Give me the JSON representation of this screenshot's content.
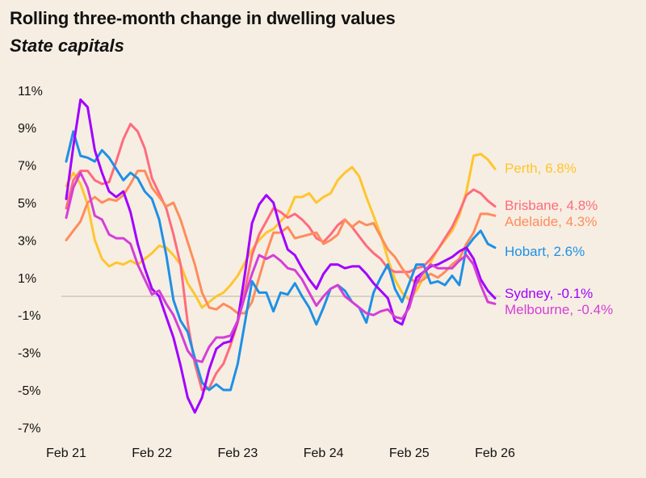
{
  "chart_data": {
    "type": "line",
    "title": "Rolling three-month change in dwelling values",
    "subtitle": "State capitals",
    "xlabel": "",
    "ylabel": "",
    "x_start": "2021-02",
    "x_end": "2026-02",
    "x_frequency": "monthly",
    "x_ticks": [
      "Feb 21",
      "Feb 22",
      "Feb 23",
      "Feb 24",
      "Feb 25",
      "Feb 26"
    ],
    "y_ticks": [
      "11%",
      "9%",
      "7%",
      "5%",
      "3%",
      "1%",
      "-1%",
      "-3%",
      "-5%",
      "-7%"
    ],
    "y_tick_values": [
      11,
      9,
      7,
      5,
      3,
      1,
      -1,
      -3,
      -5,
      -7
    ],
    "ylim": [
      -7.5,
      11.5
    ],
    "grid": false,
    "zero_line": true,
    "legend": "end-of-line labels, right",
    "series": [
      {
        "name": "Perth",
        "label": "Perth, 6.8%",
        "color": "#ffc52e",
        "values": [
          5.9,
          6.6,
          6.0,
          4.9,
          3.0,
          2.0,
          1.6,
          1.8,
          1.7,
          1.9,
          1.7,
          2.0,
          2.3,
          2.7,
          2.6,
          2.2,
          1.7,
          0.7,
          0.1,
          -0.6,
          -0.3,
          0,
          0.2,
          0.6,
          1.1,
          1.8,
          2.5,
          3.0,
          3.4,
          3.6,
          4.0,
          4.4,
          5.3,
          5.3,
          5.5,
          5.0,
          5.3,
          5.5,
          6.2,
          6.6,
          6.9,
          6.4,
          5.3,
          4.3,
          3.3,
          2.0,
          0.9,
          0.2,
          -0.2,
          0.3,
          1.0,
          1.8,
          2.5,
          3.0,
          3.5,
          4.3,
          5.6,
          7.5,
          7.6,
          7.3,
          6.8
        ]
      },
      {
        "name": "Brisbane",
        "label": "Brisbane, 4.8%",
        "color": "#ff6b7d",
        "values": [
          4.7,
          6.2,
          6.7,
          6.7,
          6.2,
          6.0,
          6.1,
          7.2,
          8.4,
          9.2,
          8.8,
          7.9,
          6.3,
          5.5,
          4.7,
          3.3,
          1.7,
          -1.4,
          -3.6,
          -5.0,
          -4.9,
          -4.1,
          -3.6,
          -2.6,
          -1.4,
          0.3,
          2.2,
          3.3,
          4.0,
          4.7,
          4.5,
          4.2,
          4.4,
          4.1,
          3.7,
          3.1,
          2.9,
          3.3,
          3.8,
          4.1,
          3.7,
          3.2,
          2.7,
          2.3,
          2.0,
          1.5,
          1.3,
          1.3,
          1.3,
          1.5,
          1.6,
          2.0,
          2.5,
          3.1,
          3.7,
          4.5,
          5.4,
          5.7,
          5.5,
          5.1,
          4.8
        ]
      },
      {
        "name": "Adelaide",
        "label": "Adelaide, 4.3%",
        "color": "#ff8c5c",
        "values": [
          3.0,
          3.5,
          4.0,
          5.0,
          5.3,
          5.0,
          5.2,
          5.1,
          5.4,
          6.0,
          6.7,
          6.7,
          5.8,
          5.3,
          4.8,
          5.0,
          4.1,
          2.9,
          1.7,
          0.2,
          -0.6,
          -0.7,
          -0.4,
          -0.6,
          -0.9,
          -0.9,
          -0.3,
          1.0,
          2.3,
          3.4,
          3.4,
          3.7,
          3.1,
          3.2,
          3.3,
          3.4,
          2.8,
          3.0,
          3.3,
          4.1,
          3.7,
          4.0,
          3.8,
          3.9,
          3.2,
          2.5,
          2.1,
          1.5,
          1.0,
          0.7,
          0.9,
          1.2,
          1.0,
          1.3,
          1.7,
          2.0,
          2.8,
          3.4,
          4.4,
          4.4,
          4.3
        ]
      },
      {
        "name": "Hobart",
        "label": "Hobart, 2.6%",
        "color": "#1e90e6",
        "values": [
          7.2,
          8.8,
          7.5,
          7.4,
          7.2,
          7.8,
          7.4,
          6.8,
          6.2,
          6.6,
          6.3,
          5.6,
          5.2,
          4.1,
          2.2,
          -0.2,
          -1.3,
          -1.9,
          -3.3,
          -4.6,
          -5.0,
          -4.7,
          -5.0,
          -5.0,
          -3.6,
          -1.4,
          0.8,
          0.2,
          0.2,
          -0.8,
          0.2,
          0.1,
          0.7,
          0,
          -0.6,
          -1.5,
          -0.6,
          0.4,
          0.6,
          0.3,
          -0.3,
          -0.6,
          -1.4,
          0.2,
          1.0,
          1.7,
          0.4,
          -0.3,
          0.7,
          1.7,
          1.7,
          0.7,
          0.8,
          0.6,
          1.1,
          0.6,
          2.6,
          3.1,
          3.5,
          2.8,
          2.6
        ]
      },
      {
        "name": "Sydney",
        "label": "Sydney, -0.1%",
        "color": "#a100ff",
        "values": [
          5.2,
          8.0,
          10.5,
          10.1,
          7.8,
          6.6,
          5.6,
          5.3,
          5.6,
          4.5,
          2.8,
          1.5,
          0.4,
          0,
          -1.1,
          -2.2,
          -3.7,
          -5.4,
          -6.2,
          -5.4,
          -3.9,
          -2.8,
          -2.5,
          -2.4,
          -1.3,
          1.2,
          3.9,
          4.9,
          5.4,
          5.0,
          3.6,
          2.5,
          2.2,
          1.5,
          0.9,
          0.4,
          1.2,
          1.7,
          1.7,
          1.5,
          1.6,
          1.6,
          1.2,
          0.7,
          0.3,
          -0.1,
          -1.3,
          -1.5,
          -0.4,
          1.0,
          1.3,
          1.6,
          1.7,
          1.9,
          2.1,
          2.4,
          2.6,
          2.0,
          0.9,
          0.3,
          -0.1
        ]
      },
      {
        "name": "Melbourne",
        "label": "Melbourne, -0.4%",
        "color": "#d43fd6",
        "values": [
          4.2,
          5.8,
          6.6,
          5.8,
          4.3,
          4.1,
          3.3,
          3.1,
          3.1,
          2.8,
          1.7,
          0.9,
          0.1,
          0.3,
          -0.4,
          -1.0,
          -1.9,
          -2.9,
          -3.4,
          -3.5,
          -2.7,
          -2.2,
          -2.2,
          -2.1,
          -1.3,
          0,
          1.2,
          2.2,
          2.0,
          2.2,
          1.9,
          1.5,
          1.4,
          0.9,
          0.2,
          -0.5,
          0,
          0.4,
          0.6,
          0,
          -0.3,
          -0.6,
          -0.9,
          -1.0,
          -0.8,
          -0.7,
          -1.1,
          -1.2,
          -0.6,
          0.7,
          1.3,
          1.7,
          1.5,
          1.5,
          1.5,
          1.9,
          2.2,
          1.7,
          0.6,
          -0.3,
          -0.4
        ]
      }
    ]
  }
}
